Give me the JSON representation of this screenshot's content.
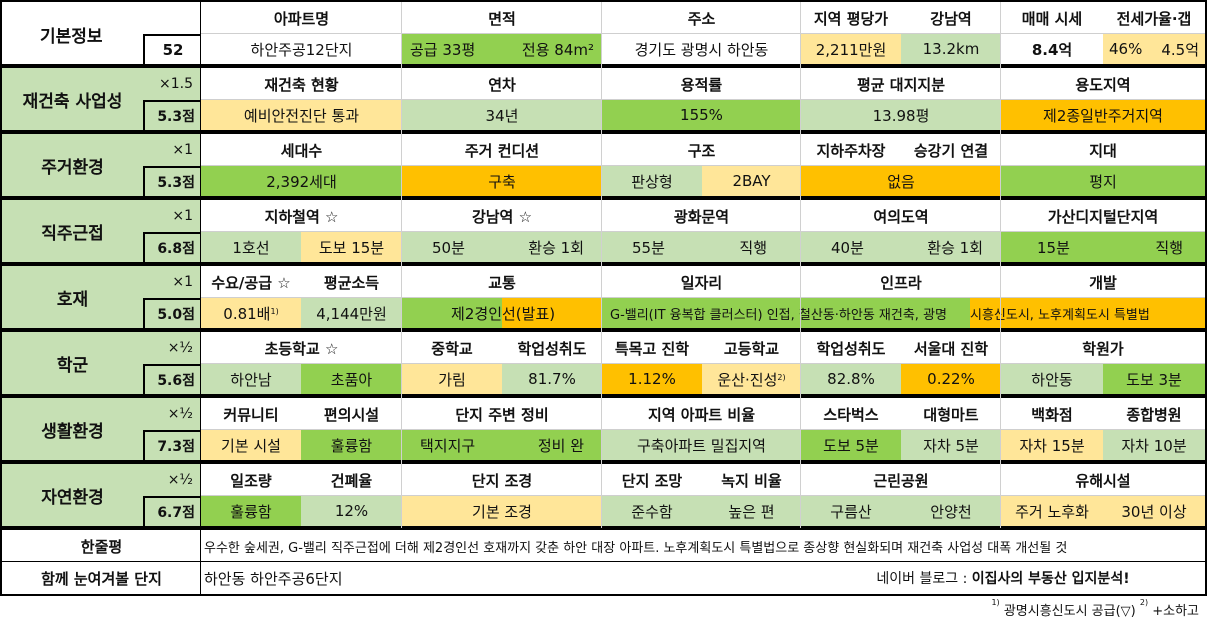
{
  "basic": {
    "label": "기본정보",
    "number": "52",
    "headers": {
      "apt_name": "아파트명",
      "area": "면적",
      "address": "주소",
      "price_per_pyeong": "지역 평당가",
      "gangnam": "강남역",
      "sale_price": "매매 시세",
      "jeonse": "전세가율·갭"
    },
    "values": {
      "apt_name": "하안주공12단지",
      "area_supply": "공급 33평",
      "area_exclusive": "전용 84m²",
      "address": "경기도 광명시 하안동",
      "price_per_pyeong": "2,211만원",
      "gangnam": "13.2km",
      "sale_price": "8.4억",
      "jeonse_rate": "46%",
      "gap": "4.5억"
    }
  },
  "rebuild": {
    "label": "재건축 사업성",
    "mult": "×1.5",
    "score": "5.3점",
    "headers": {
      "status": "재건축 현황",
      "age": "연차",
      "far": "용적률",
      "land": "평균 대지지분",
      "zone": "용도지역"
    },
    "values": {
      "status": "예비안전진단 통과",
      "age": "34년",
      "far": "155%",
      "land": "13.98평",
      "zone": "제2종일반주거지역"
    }
  },
  "living": {
    "label": "주거환경",
    "mult": "×1",
    "score": "5.3점",
    "headers": {
      "households": "세대수",
      "condition": "주거 컨디션",
      "structure": "구조",
      "parking": "지하주차장",
      "elevator": "승강기 연결",
      "terrain": "지대"
    },
    "values": {
      "households": "2,392세대",
      "condition": "구축",
      "structure_a": "판상형",
      "structure_b": "2BAY",
      "parking_elevator": "없음",
      "terrain": "평지"
    }
  },
  "commute": {
    "label": "직주근접",
    "mult": "×1",
    "score": "6.8점",
    "headers": {
      "subway": "지하철역 ☆",
      "gangnam": "강남역 ☆",
      "gwanghwamun": "광화문역",
      "yeouido": "여의도역",
      "gasan": "가산디지털단지역"
    },
    "values": {
      "subway_line": "1호선",
      "subway_walk": "도보 15분",
      "gangnam_time": "50분",
      "gangnam_transfer": "환승 1회",
      "gwanghwamun_time": "55분",
      "gwanghwamun_transfer": "직행",
      "yeouido_time": "40분",
      "yeouido_transfer": "환승 1회",
      "gasan_time": "15분",
      "gasan_transfer": "직행"
    }
  },
  "development": {
    "label": "호재",
    "mult": "×1",
    "score": "5.0점",
    "headers": {
      "supply": "수요/공급 ☆",
      "income": "평균소득",
      "transport": "교통",
      "jobs": "일자리",
      "infra": "인프라",
      "dev": "개발"
    },
    "values": {
      "supply": "0.81배",
      "supply_note": "1)",
      "income": "4,144만원",
      "transport_a": "제2경인",
      "transport_b": "선(발표)",
      "jobs": "G-밸리(IT 융복합 클러스터) 인접, 철산동·하안동 재건축, 광명",
      "dev": "시흥신도시, 노후계획도시 특별법"
    }
  },
  "school": {
    "label": "학군",
    "mult": "×½",
    "score": "5.6점",
    "headers": {
      "elementary": "초등학교 ☆",
      "middle": "중학교",
      "middle_achieve": "학업성취도",
      "special": "특목고 진학",
      "high": "고등학교",
      "high_achieve": "학업성취도",
      "snu": "서울대 진학",
      "academy": "학원가"
    },
    "values": {
      "elem_a": "하안남",
      "elem_b": "초품아",
      "middle": "가림",
      "middle_achieve": "81.7%",
      "special": "1.12%",
      "high": "운산·진성",
      "high_note": "2)",
      "high_achieve": "82.8%",
      "snu": "0.22%",
      "academy_a": "하안동",
      "academy_b": "도보 3분"
    }
  },
  "life": {
    "label": "생활환경",
    "mult": "×½",
    "score": "7.3점",
    "headers": {
      "community": "커뮤니티",
      "amenities": "편의시설",
      "surround": "단지 주변 정비",
      "ratio": "지역 아파트 비율",
      "starbucks": "스타벅스",
      "mart": "대형마트",
      "dept": "백화점",
      "hospital": "종합병원"
    },
    "values": {
      "community": "기본 시설",
      "amenities": "훌륭함",
      "surround_a": "택지지구",
      "surround_b": "정비 완",
      "ratio": "구축아파트 밀집지역",
      "starbucks": "도보 5분",
      "mart": "자차 5분",
      "dept": "자차 15분",
      "hospital": "자차 10분"
    }
  },
  "nature": {
    "label": "자연환경",
    "mult": "×½",
    "score": "6.7점",
    "headers": {
      "sunlight": "일조량",
      "bcr": "건폐율",
      "landscape": "단지 조경",
      "view": "단지 조망",
      "green": "녹지 비율",
      "park": "근린공원",
      "hazard": "유해시설"
    },
    "values": {
      "sunlight": "훌륭함",
      "bcr": "12%",
      "landscape": "기본 조경",
      "view": "준수함",
      "green": "높은 편",
      "park_a": "구름산",
      "park_b": "안양천",
      "hazard_a": "주거 노후화",
      "hazard_b": "30년 이상"
    }
  },
  "summary": {
    "label": "한줄평",
    "text": "우수한 숲세권, G-밸리 직주근접에 더해 제2경인선 호재까지 갖춘 하안 대장 아파트. 노후계획도시 특별법으로 종상향 현실화되며 재건축 사업성 대폭 개선될 것"
  },
  "related": {
    "label": "함께 눈여겨볼 단지",
    "text": "하안동 하안주공6단지",
    "blog_prefix": "네이버 블로그 : ",
    "blog_name": "이집사의 부동산 입지분석!"
  },
  "footnote": {
    "note1_mark": "1)",
    "note1": " 광명시흥신도시 공급(▽) ",
    "note2_mark": "2)",
    "note2": " +소하고"
  },
  "colors": {
    "light_green": "#c6e0b4",
    "green": "#92d050",
    "yellow": "#ffe699",
    "orange": "#ffc000"
  }
}
